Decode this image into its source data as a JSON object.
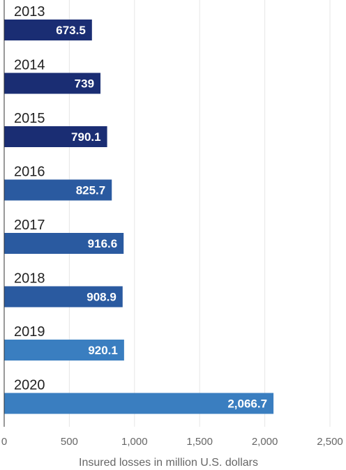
{
  "chart_data": {
    "type": "bar",
    "orientation": "horizontal",
    "categories": [
      "2013",
      "2014",
      "2015",
      "2016",
      "2017",
      "2018",
      "2019",
      "2020"
    ],
    "values": [
      673.5,
      739,
      790.1,
      825.7,
      916.6,
      908.9,
      920.1,
      2066.7
    ],
    "value_labels": [
      "673.5",
      "739",
      "790.1",
      "825.7",
      "916.6",
      "908.9",
      "920.1",
      "2,066.7"
    ],
    "bar_colors": [
      "#1a2d73",
      "#1a2d73",
      "#1a2d73",
      "#2a5aa0",
      "#2a5aa0",
      "#2a5aa0",
      "#3a7ec0",
      "#3a7ec0"
    ],
    "xlabel": "Insured losses in million U.S. dollars",
    "xlim": [
      0,
      2500
    ],
    "xticks": [
      0,
      500,
      1000,
      1500,
      2000,
      2500
    ],
    "xtick_labels": [
      "0",
      "500",
      "1,000",
      "1,500",
      "2,000",
      "2,500"
    ],
    "grid": "vertical"
  }
}
